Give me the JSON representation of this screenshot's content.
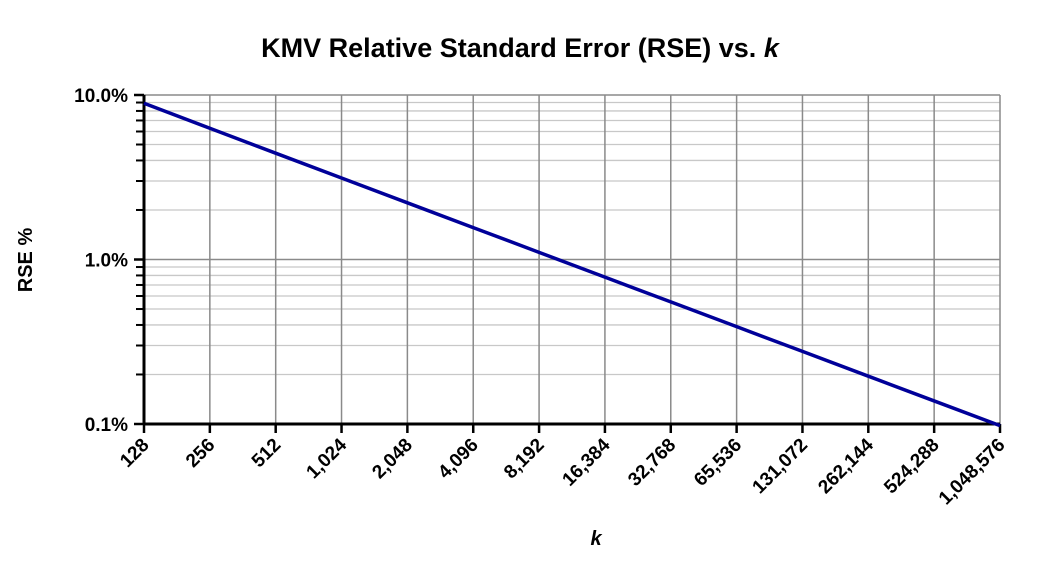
{
  "chart_data": {
    "type": "line",
    "title": "KMV Relative Standard Error (RSE) vs.",
    "title_var": "k",
    "xlabel": "k",
    "ylabel": "RSE %",
    "yscale": "log",
    "xscale": "log2",
    "ylim": [
      0.1,
      10
    ],
    "y_ticks": [
      0.1,
      1,
      10
    ],
    "y_tick_labels": [
      "0.1%",
      "1.0%",
      "10.0%"
    ],
    "x_tick_labels": [
      "128",
      "256",
      "512",
      "1,024",
      "2,048",
      "4,096",
      "8,192",
      "16,384",
      "32,768",
      "65,536",
      "131,072",
      "262,144",
      "524,288",
      "1,048,576"
    ],
    "grid": true,
    "series": [
      {
        "name": "RSE",
        "color": "#000099",
        "x": [
          128,
          256,
          512,
          1024,
          2048,
          4096,
          8192,
          16384,
          32768,
          65536,
          131072,
          262144,
          524288,
          1048576
        ],
        "values": [
          8.909,
          6.275,
          4.428,
          3.128,
          2.211,
          1.563,
          1.105,
          0.7813,
          0.5524,
          0.3906,
          0.2762,
          0.1953,
          0.1381,
          0.0977
        ]
      }
    ]
  }
}
